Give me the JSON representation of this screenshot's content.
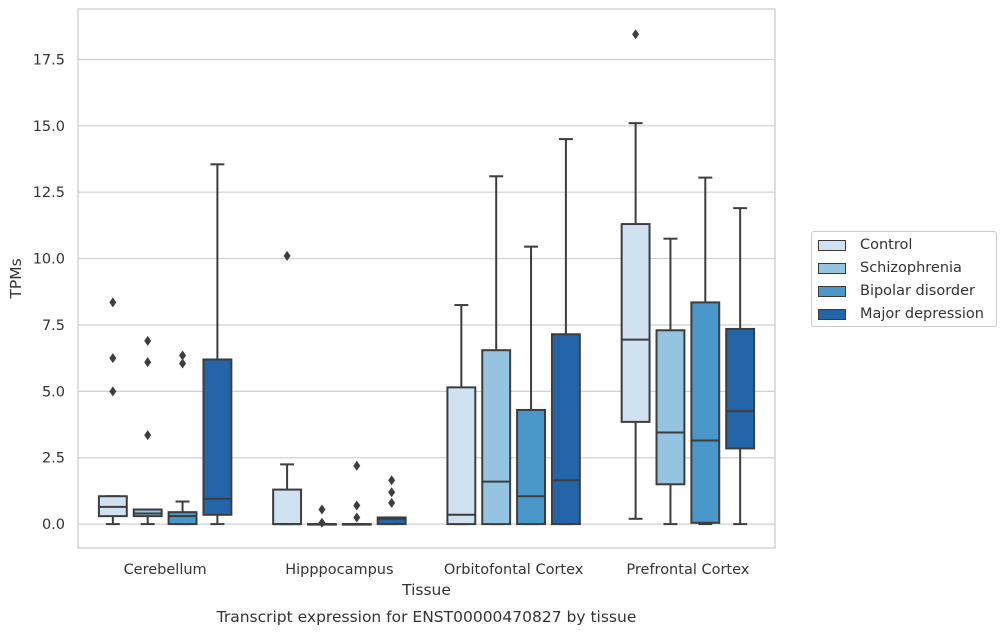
{
  "chart_data": {
    "type": "box",
    "title": "",
    "caption": "Transcript expression for ENST00000470827 by tissue",
    "xlabel": "Tissue",
    "ylabel": "TPMs",
    "ylim": [
      -0.9,
      19.4
    ],
    "yticks": [
      "0.0",
      "2.5",
      "5.0",
      "7.5",
      "10.0",
      "12.5",
      "15.0",
      "17.5"
    ],
    "grid": "horizontal",
    "legend_position": "right",
    "categories": [
      "Cerebellum",
      "Hipppocampus",
      "Orbitofontal Cortex",
      "Prefrontal Cortex"
    ],
    "series": [
      {
        "name": "Control",
        "color": "#d0e1f2",
        "boxes": [
          {
            "whislo": 0.0,
            "q1": 0.3,
            "med": 0.65,
            "q3": 1.05,
            "whishi": 1.05,
            "fliers": [
              5.0,
              6.25,
              8.35
            ]
          },
          {
            "whislo": 0.0,
            "q1": 0.0,
            "med": 0.0,
            "q3": 1.3,
            "whishi": 2.25,
            "fliers": [
              10.1
            ]
          },
          {
            "whislo": 0.0,
            "q1": 0.0,
            "med": 0.35,
            "q3": 5.15,
            "whishi": 8.25,
            "fliers": []
          },
          {
            "whislo": 0.2,
            "q1": 3.85,
            "med": 6.95,
            "q3": 11.3,
            "whishi": 15.1,
            "fliers": [
              18.45
            ]
          }
        ]
      },
      {
        "name": "Schizophrenia",
        "color": "#94c4df",
        "boxes": [
          {
            "whislo": 0.0,
            "q1": 0.3,
            "med": 0.4,
            "q3": 0.55,
            "whishi": 0.55,
            "fliers": [
              3.35,
              6.1,
              6.9
            ]
          },
          {
            "whislo": 0.0,
            "q1": 0.0,
            "med": 0.0,
            "q3": 0.0,
            "whishi": 0.0,
            "fliers": [
              0.05,
              0.55
            ]
          },
          {
            "whislo": 0.0,
            "q1": 0.0,
            "med": 1.6,
            "q3": 6.55,
            "whishi": 13.1,
            "fliers": []
          },
          {
            "whislo": 0.0,
            "q1": 1.5,
            "med": 3.45,
            "q3": 7.3,
            "whishi": 10.75,
            "fliers": []
          }
        ]
      },
      {
        "name": "Bipolar disorder",
        "color": "#4a98c9",
        "boxes": [
          {
            "whislo": 0.0,
            "q1": 0.0,
            "med": 0.3,
            "q3": 0.45,
            "whishi": 0.85,
            "fliers": [
              6.05,
              6.35
            ]
          },
          {
            "whislo": 0.0,
            "q1": 0.0,
            "med": 0.0,
            "q3": 0.0,
            "whishi": 0.0,
            "fliers": [
              0.25,
              0.7,
              2.2
            ]
          },
          {
            "whislo": 0.0,
            "q1": 0.0,
            "med": 1.05,
            "q3": 4.3,
            "whishi": 10.45,
            "fliers": []
          },
          {
            "whislo": 0.0,
            "q1": 0.05,
            "med": 3.15,
            "q3": 8.35,
            "whishi": 13.05,
            "fliers": []
          }
        ]
      },
      {
        "name": "Major depression",
        "color": "#2464a8",
        "boxes": [
          {
            "whislo": 0.0,
            "q1": 0.35,
            "med": 0.95,
            "q3": 6.2,
            "whishi": 13.55,
            "fliers": []
          },
          {
            "whislo": 0.0,
            "q1": 0.0,
            "med": 0.2,
            "q3": 0.25,
            "whishi": 0.25,
            "fliers": [
              0.8,
              1.2,
              1.65
            ]
          },
          {
            "whislo": 0.0,
            "q1": 0.0,
            "med": 1.65,
            "q3": 7.15,
            "whishi": 14.5,
            "fliers": []
          },
          {
            "whislo": 0.0,
            "q1": 2.85,
            "med": 4.25,
            "q3": 7.35,
            "whishi": 11.9,
            "fliers": []
          }
        ]
      }
    ]
  }
}
